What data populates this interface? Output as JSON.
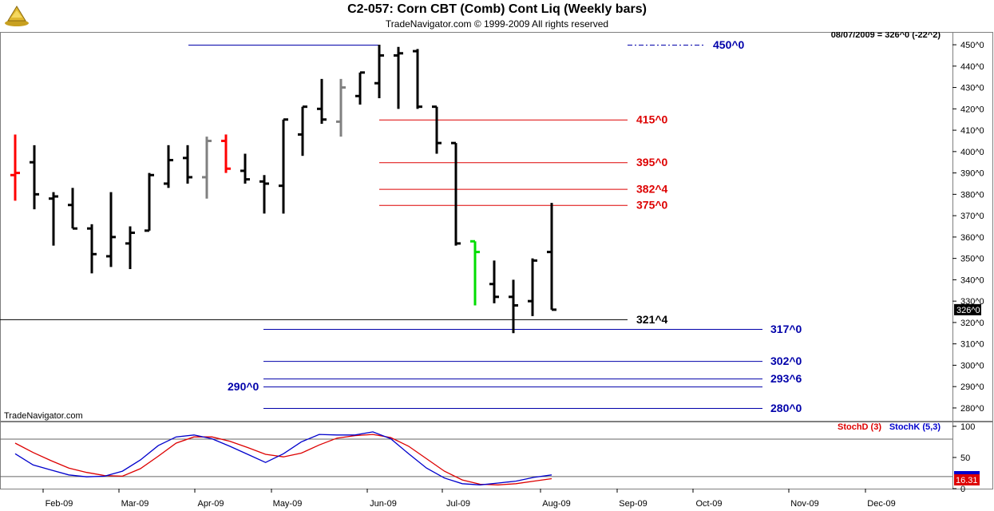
{
  "header": {
    "title": "C2-057:  Corn CBT (Comb) Cont Liq  (Weekly bars)",
    "subtitle": "TradeNavigator.com © 1999-2009 All rights reserved",
    "status_line": "08/07/2009 = 326^0 (-22^2)",
    "watermark": "TradeNavigator.com"
  },
  "colors": {
    "bar_up": "#000000",
    "bar_gray": "#808080",
    "bar_red": "#ff0000",
    "bar_green": "#00dd00",
    "line_red": "#dd0000",
    "line_blue": "#0000aa",
    "level_black": "#000000",
    "stoch_d": "#dd0000",
    "stoch_k": "#0000cc",
    "panel_border": "#7f7f7f"
  },
  "chart_data": [
    {
      "type": "ohlc",
      "title": "C2-057:  Corn CBT (Comb) Cont Liq  (Weekly bars)",
      "x_axis_labels": [
        "Feb-09",
        "Mar-09",
        "Apr-09",
        "May-09",
        "Jun-09",
        "Jul-09",
        "Aug-09",
        "Sep-09",
        "Oct-09",
        "Nov-09",
        "Dec-09"
      ],
      "y_ticks": [
        "280^0",
        "290^0",
        "300^0",
        "310^0",
        "320^0",
        "330^0",
        "340^0",
        "350^0",
        "360^0",
        "370^0",
        "380^0",
        "390^0",
        "400^0",
        "410^0",
        "420^0",
        "430^0",
        "440^0",
        "450^0"
      ],
      "ylim": [
        274,
        456
      ],
      "last_price_label": "326^0",
      "bars": [
        {
          "week": 0,
          "o": 389,
          "h": 408,
          "l": 377,
          "c": 390,
          "color": "red"
        },
        {
          "week": 1,
          "o": 395,
          "h": 403,
          "l": 373,
          "c": 380,
          "color": "black"
        },
        {
          "week": 2,
          "o": 378,
          "h": 381,
          "l": 356,
          "c": 379,
          "color": "black"
        },
        {
          "week": 3,
          "o": 375,
          "h": 383,
          "l": 364,
          "c": 364,
          "color": "black"
        },
        {
          "week": 4,
          "o": 364,
          "h": 366,
          "l": 343,
          "c": 352,
          "color": "black"
        },
        {
          "week": 5,
          "o": 351,
          "h": 381,
          "l": 346,
          "c": 360,
          "color": "black"
        },
        {
          "week": 6,
          "o": 357,
          "h": 365,
          "l": 345,
          "c": 362,
          "color": "black"
        },
        {
          "week": 7,
          "o": 363,
          "h": 390,
          "l": 363,
          "c": 389,
          "color": "black"
        },
        {
          "week": 8,
          "o": 385,
          "h": 403,
          "l": 383,
          "c": 396,
          "color": "black"
        },
        {
          "week": 9,
          "o": 397,
          "h": 403,
          "l": 385,
          "c": 388,
          "color": "black"
        },
        {
          "week": 10,
          "o": 388,
          "h": 407,
          "l": 378,
          "c": 405,
          "color": "gray"
        },
        {
          "week": 11,
          "o": 405,
          "h": 408,
          "l": 390,
          "c": 392,
          "color": "red"
        },
        {
          "week": 12,
          "o": 391,
          "h": 399,
          "l": 385,
          "c": 387,
          "color": "black"
        },
        {
          "week": 13,
          "o": 386,
          "h": 389,
          "l": 371,
          "c": 385,
          "color": "black"
        },
        {
          "week": 14,
          "o": 384,
          "h": 415,
          "l": 371,
          "c": 415,
          "color": "black"
        },
        {
          "week": 15,
          "o": 408,
          "h": 421,
          "l": 398,
          "c": 421,
          "color": "black"
        },
        {
          "week": 16,
          "o": 420,
          "h": 434,
          "l": 413,
          "c": 415,
          "color": "black"
        },
        {
          "week": 17,
          "o": 414,
          "h": 434,
          "l": 407,
          "c": 430,
          "color": "gray"
        },
        {
          "week": 18,
          "o": 426,
          "h": 437,
          "l": 422,
          "c": 437,
          "color": "black"
        },
        {
          "week": 19,
          "o": 432,
          "h": 450,
          "l": 425,
          "c": 445,
          "color": "black"
        },
        {
          "week": 20,
          "o": 445,
          "h": 449,
          "l": 420,
          "c": 446,
          "color": "black"
        },
        {
          "week": 21,
          "o": 447,
          "h": 448,
          "l": 420,
          "c": 421,
          "color": "black"
        },
        {
          "week": 22,
          "o": 421,
          "h": 421,
          "l": 399,
          "c": 404,
          "color": "black"
        },
        {
          "week": 23,
          "o": 404,
          "h": 404,
          "l": 356,
          "c": 357,
          "color": "black"
        },
        {
          "week": 24,
          "o": 358,
          "h": 358,
          "l": 328,
          "c": 353,
          "color": "green"
        },
        {
          "week": 25,
          "o": 338,
          "h": 349,
          "l": 329,
          "c": 332,
          "color": "black"
        },
        {
          "week": 26,
          "o": 332,
          "h": 340,
          "l": 315,
          "c": 328,
          "color": "black"
        },
        {
          "week": 27,
          "o": 330,
          "h": 350,
          "l": 323,
          "c": 349,
          "color": "black"
        },
        {
          "week": 28,
          "o": 353,
          "h": 376,
          "l": 326,
          "c": 326,
          "color": "black"
        }
      ],
      "levels": [
        {
          "value": 450.0,
          "label": "450^0",
          "color": "blue",
          "dashed_label": true
        },
        {
          "value": 415.0,
          "label": "415^0",
          "color": "red"
        },
        {
          "value": 395.0,
          "label": "395^0",
          "color": "red"
        },
        {
          "value": 382.5,
          "label": "382^4",
          "color": "red"
        },
        {
          "value": 375.0,
          "label": "375^0",
          "color": "red"
        },
        {
          "value": 321.5,
          "label": "321^4",
          "color": "black"
        },
        {
          "value": 317.0,
          "label": "317^0",
          "color": "blue"
        },
        {
          "value": 302.0,
          "label": "302^0",
          "color": "blue"
        },
        {
          "value": 293.75,
          "label": "293^6",
          "color": "blue"
        },
        {
          "value": 290.0,
          "label": "290^0",
          "color": "blue"
        },
        {
          "value": 280.0,
          "label": "280^0",
          "color": "blue"
        }
      ]
    },
    {
      "type": "line",
      "title": "",
      "series": [
        {
          "name": "StochD (3)",
          "values": [
            73,
            58,
            45,
            33,
            26,
            21,
            20,
            32,
            52,
            73,
            83,
            83,
            76,
            66,
            55,
            51,
            57,
            70,
            81,
            85,
            87,
            82,
            68,
            48,
            28,
            14,
            7,
            6,
            8,
            12,
            16
          ]
        },
        {
          "name": "StochK (5,3)",
          "values": [
            56,
            38,
            30,
            22,
            19,
            20,
            28,
            46,
            69,
            83,
            86,
            80,
            68,
            55,
            42,
            56,
            75,
            87,
            86,
            86,
            91,
            80,
            56,
            33,
            17,
            8,
            6,
            9,
            12,
            18,
            22
          ]
        }
      ],
      "ylim": [
        0,
        105
      ],
      "y_ticks": [
        "0",
        "50",
        "100"
      ],
      "last_value_label": "16.31",
      "reference_lines": [
        80,
        20
      ]
    }
  ]
}
